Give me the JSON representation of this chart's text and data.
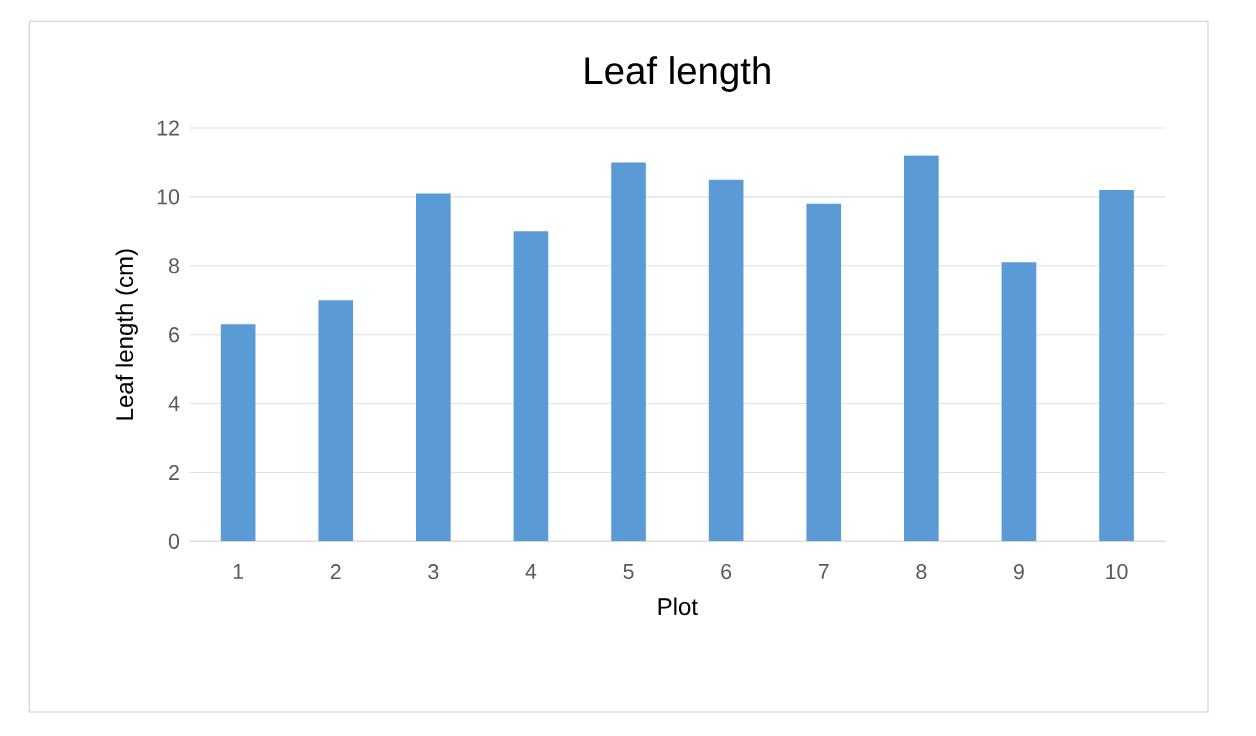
{
  "chart_data": {
    "type": "bar",
    "title": "Leaf length",
    "xlabel": "Plot",
    "ylabel": "Leaf length (cm)",
    "categories": [
      "1",
      "2",
      "3",
      "4",
      "5",
      "6",
      "7",
      "8",
      "9",
      "10"
    ],
    "values": [
      6.3,
      7.0,
      10.1,
      9.0,
      11.0,
      10.5,
      9.8,
      11.2,
      8.1,
      10.2
    ],
    "color": "#5b9bd5",
    "ylim": [
      0,
      12
    ],
    "yticks": [
      0,
      2,
      4,
      6,
      8,
      10,
      12
    ],
    "grid": "y"
  }
}
